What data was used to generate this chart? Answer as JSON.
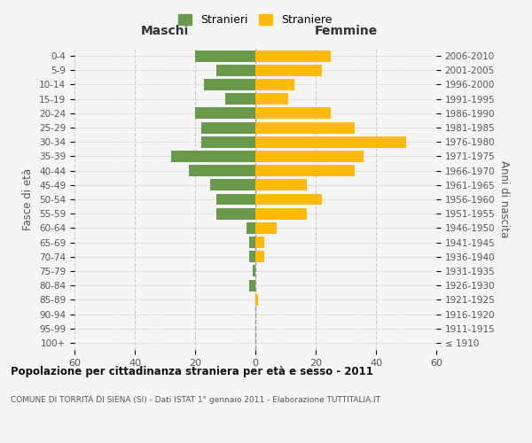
{
  "age_groups": [
    "100+",
    "95-99",
    "90-94",
    "85-89",
    "80-84",
    "75-79",
    "70-74",
    "65-69",
    "60-64",
    "55-59",
    "50-54",
    "45-49",
    "40-44",
    "35-39",
    "30-34",
    "25-29",
    "20-24",
    "15-19",
    "10-14",
    "5-9",
    "0-4"
  ],
  "birth_years": [
    "≤ 1910",
    "1911-1915",
    "1916-1920",
    "1921-1925",
    "1926-1930",
    "1931-1935",
    "1936-1940",
    "1941-1945",
    "1946-1950",
    "1951-1955",
    "1956-1960",
    "1961-1965",
    "1966-1970",
    "1971-1975",
    "1976-1980",
    "1981-1985",
    "1986-1990",
    "1991-1995",
    "1996-2000",
    "2001-2005",
    "2006-2010"
  ],
  "maschi": [
    0,
    0,
    0,
    0,
    2,
    1,
    2,
    2,
    3,
    13,
    13,
    15,
    22,
    28,
    18,
    18,
    20,
    10,
    17,
    13,
    20
  ],
  "femmine": [
    0,
    0,
    0,
    1,
    0,
    0,
    3,
    3,
    7,
    17,
    22,
    17,
    33,
    36,
    50,
    33,
    25,
    11,
    13,
    22,
    25
  ],
  "maschi_color": "#6a994e",
  "femmine_color": "#ffba08",
  "background_color": "#f5f5f5",
  "title": "Popolazione per cittadinanza straniera per età e sesso - 2011",
  "subtitle": "COMUNE DI TORRITA DI SIENA (SI) - Dati ISTAT 1° gennaio 2011 - Elaborazione TUTTITALIA.IT",
  "xlabel_left": "Maschi",
  "xlabel_right": "Femmine",
  "ylabel_left": "Fasce di età",
  "ylabel_right": "Anni di nascita",
  "legend_maschi": "Stranieri",
  "legend_femmine": "Straniere",
  "xlim": 60,
  "bar_height": 0.8
}
